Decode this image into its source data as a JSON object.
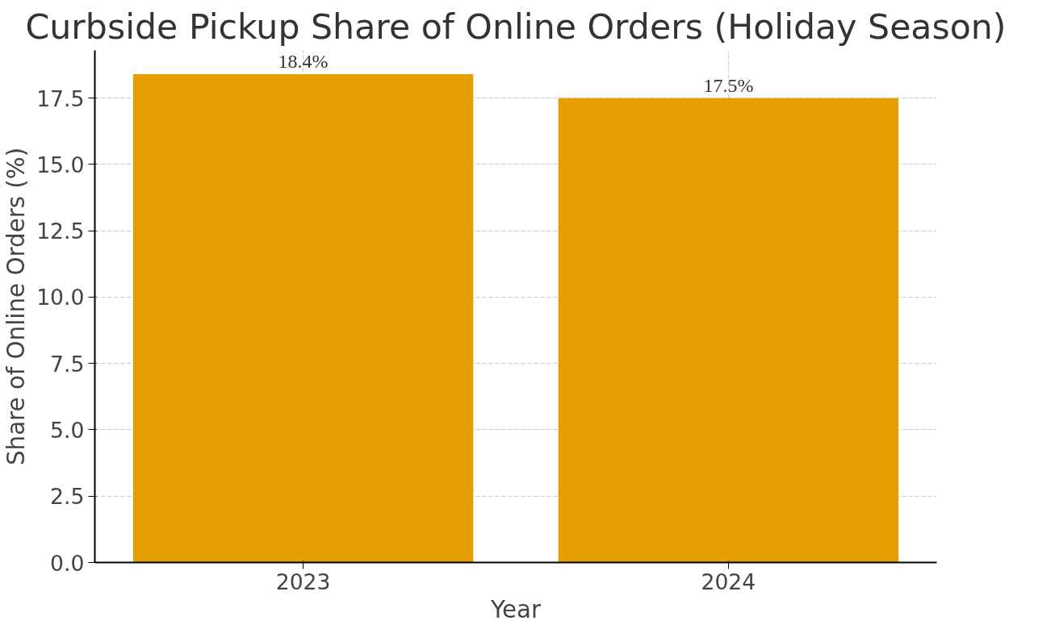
{
  "chart_data": {
    "type": "bar",
    "title": "Curbside Pickup Share of Online Orders (Holiday Season)",
    "xlabel": "Year",
    "ylabel": "Share of Online Orders (%)",
    "categories": [
      "2023",
      "2024"
    ],
    "values": [
      18.4,
      17.5
    ],
    "value_labels": [
      "18.4%",
      "17.5%"
    ],
    "color": "#e69f00",
    "ylim": [
      0,
      19.3
    ],
    "yticks": [
      {
        "value": 0,
        "label": "0.0"
      },
      2.5,
      {
        "value": 5,
        "label": "5.0"
      },
      7.5,
      {
        "value": 10,
        "label": "10.0"
      },
      12.5,
      {
        "value": 15,
        "label": "15.0"
      },
      17.5
    ],
    "grid": true
  }
}
